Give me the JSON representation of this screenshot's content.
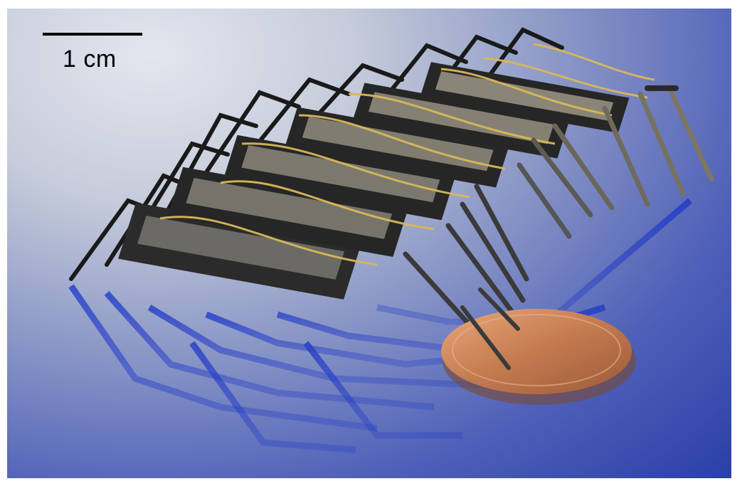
{
  "scale_bar": {
    "label": "1 cm"
  },
  "colors": {
    "background_light": "#d8dce6",
    "background_blue": "#3a4fb5",
    "robot_frame": "#1e1e1e",
    "wire_gold": "#d4b45a",
    "coin_copper": "#c98358"
  }
}
